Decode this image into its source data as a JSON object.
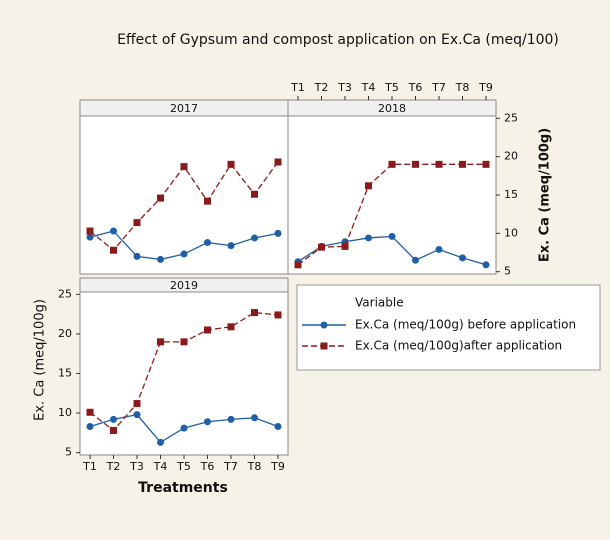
{
  "chart_data": {
    "type": "line",
    "title": "Effect of Gypsum and compost application on Ex.Ca (meq/100)",
    "y_label": "Ex. Ca (meq/100g)",
    "x_label": "Treatments",
    "legend_title": "Variable",
    "categories": [
      "T1",
      "T2",
      "T3",
      "T4",
      "T5",
      "T6",
      "T7",
      "T8",
      "T9"
    ],
    "ylim": [
      4.7,
      25.3
    ],
    "yticks": [
      5,
      10,
      15,
      20,
      25
    ],
    "series": [
      {
        "name": "Ex.Ca (meq/100g) before application",
        "color": "#1f5fa8"
      },
      {
        "name": "Ex.Ca (meq/100g)after application",
        "color": "#8b1a1a"
      }
    ],
    "panels": [
      {
        "title": "2017",
        "series": [
          {
            "values": [
              9.5,
              10.3,
              7.0,
              6.6,
              7.3,
              8.8,
              8.4,
              9.4,
              10.0
            ]
          },
          {
            "values": [
              10.3,
              7.8,
              11.4,
              14.6,
              18.7,
              14.2,
              19.0,
              15.1,
              19.3
            ]
          }
        ]
      },
      {
        "title": "2018",
        "series": [
          {
            "values": [
              6.3,
              8.3,
              8.9,
              9.4,
              9.6,
              6.5,
              7.9,
              6.8,
              5.9
            ]
          },
          {
            "values": [
              5.9,
              8.2,
              8.3,
              16.2,
              19.0,
              19.0,
              19.0,
              19.0,
              19.0
            ]
          }
        ]
      },
      {
        "title": "2019",
        "series": [
          {
            "values": [
              8.3,
              9.2,
              9.8,
              6.3,
              8.1,
              8.9,
              9.2,
              9.4,
              8.3
            ]
          },
          {
            "values": [
              10.1,
              7.8,
              11.2,
              19.0,
              19.0,
              20.5,
              20.9,
              22.7,
              22.4
            ]
          }
        ]
      }
    ]
  }
}
